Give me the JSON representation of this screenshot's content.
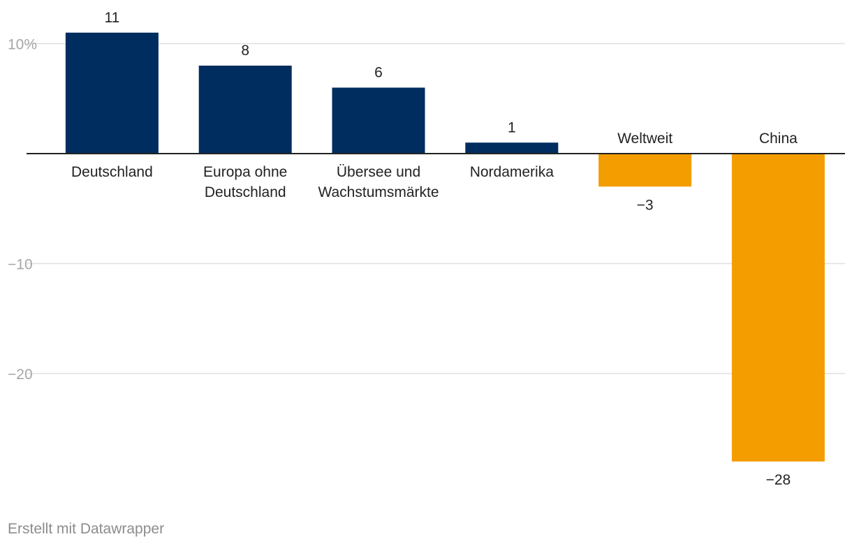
{
  "chart_data": {
    "type": "bar",
    "categories": [
      "Deutschland",
      "Europa ohne Deutschland",
      "Übersee und Wachstumsmärkte",
      "Nordamerika",
      "Weltweit",
      "China"
    ],
    "category_label_lines": [
      [
        "Deutschland"
      ],
      [
        "Europa ohne",
        "Deutschland"
      ],
      [
        "Übersee und",
        "Wachstumsmärkte"
      ],
      [
        "Nordamerika"
      ],
      [
        "Weltweit"
      ],
      [
        "China"
      ]
    ],
    "values": [
      11,
      8,
      6,
      1,
      -3,
      -28
    ],
    "value_labels": [
      "11",
      "8",
      "6",
      "1",
      "−3",
      "−28"
    ],
    "ylim": [
      -28,
      11
    ],
    "y_ticks": [
      {
        "value": 10,
        "label": "10%"
      },
      {
        "value": -10,
        "label": "−10"
      },
      {
        "value": -20,
        "label": "−20"
      }
    ],
    "grid": true,
    "colors": {
      "positive": "#002d5f",
      "negative": "#f49d00",
      "gridline": "#e0e0e0",
      "zero_line": "#222222",
      "tick_label": "#a6a6a6",
      "text": "#222222"
    }
  },
  "footer": {
    "credit": "Erstellt mit Datawrapper"
  }
}
